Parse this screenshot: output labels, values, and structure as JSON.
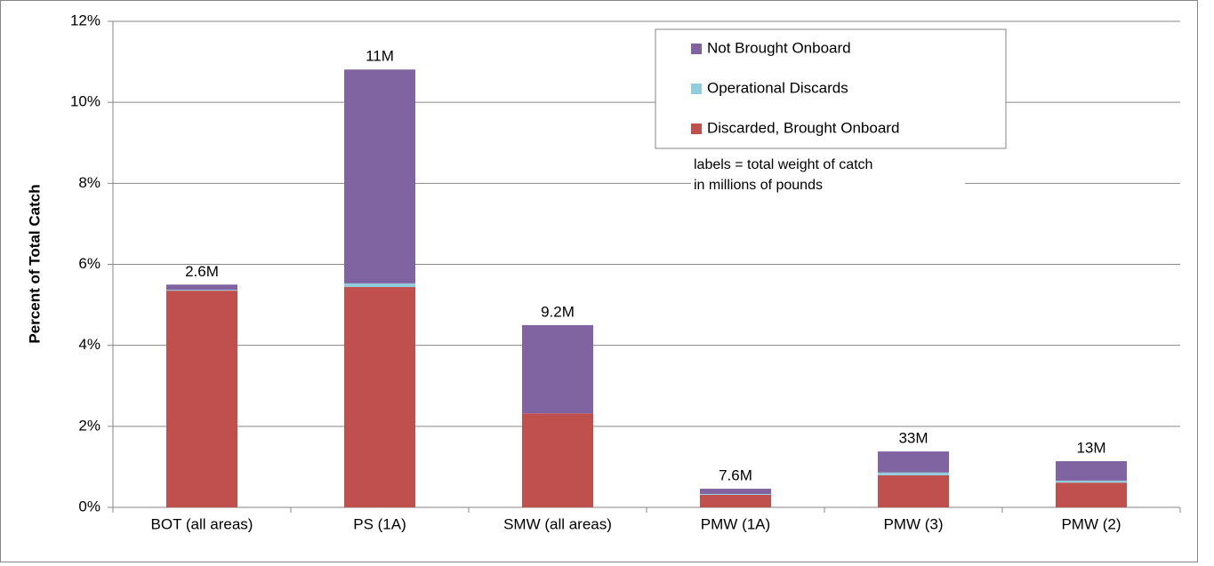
{
  "chart_data": {
    "type": "stacked_bar",
    "y_label": "Percent of Total Catch",
    "categories": [
      "BOT (all areas)",
      "PS (1A)",
      "SMW (all areas)",
      "PMW (1A)",
      "PMW (3)",
      "PMW (2)"
    ],
    "series": [
      {
        "name": "Discarded, Brought Onboard",
        "color": "#c0504d",
        "values": [
          5.35,
          5.44,
          2.32,
          0.31,
          0.79,
          0.61
        ]
      },
      {
        "name": "Operational Discards",
        "color": "#92cddc",
        "values": [
          0.02,
          0.09,
          0,
          0.02,
          0.07,
          0.05
        ]
      },
      {
        "name": "Not Brought Onboard",
        "color": "#8064a2",
        "values": [
          0.13,
          5.28,
          2.18,
          0.13,
          0.52,
          0.48
        ]
      }
    ],
    "totals": {
      "values": [
        2.6,
        11,
        9.2,
        7.6,
        33,
        13
      ],
      "value_labels": [
        "2.6M",
        "11M",
        "9.2M",
        "7.6M",
        "33M",
        "13M"
      ]
    },
    "annotation": [
      "labels = total weight of catch",
      "in millions of pounds"
    ],
    "ylim": [
      0,
      12
    ],
    "yticks": [
      {
        "value": 0,
        "label": "0%"
      },
      {
        "value": 2,
        "label": "2%"
      },
      {
        "value": 4,
        "label": "4%"
      },
      {
        "value": 6,
        "label": "6%"
      },
      {
        "value": 8,
        "label": "8%"
      },
      {
        "value": 10,
        "label": "10%"
      },
      {
        "value": 12,
        "label": "12%"
      }
    ],
    "grid": true,
    "legend": "upper right"
  }
}
